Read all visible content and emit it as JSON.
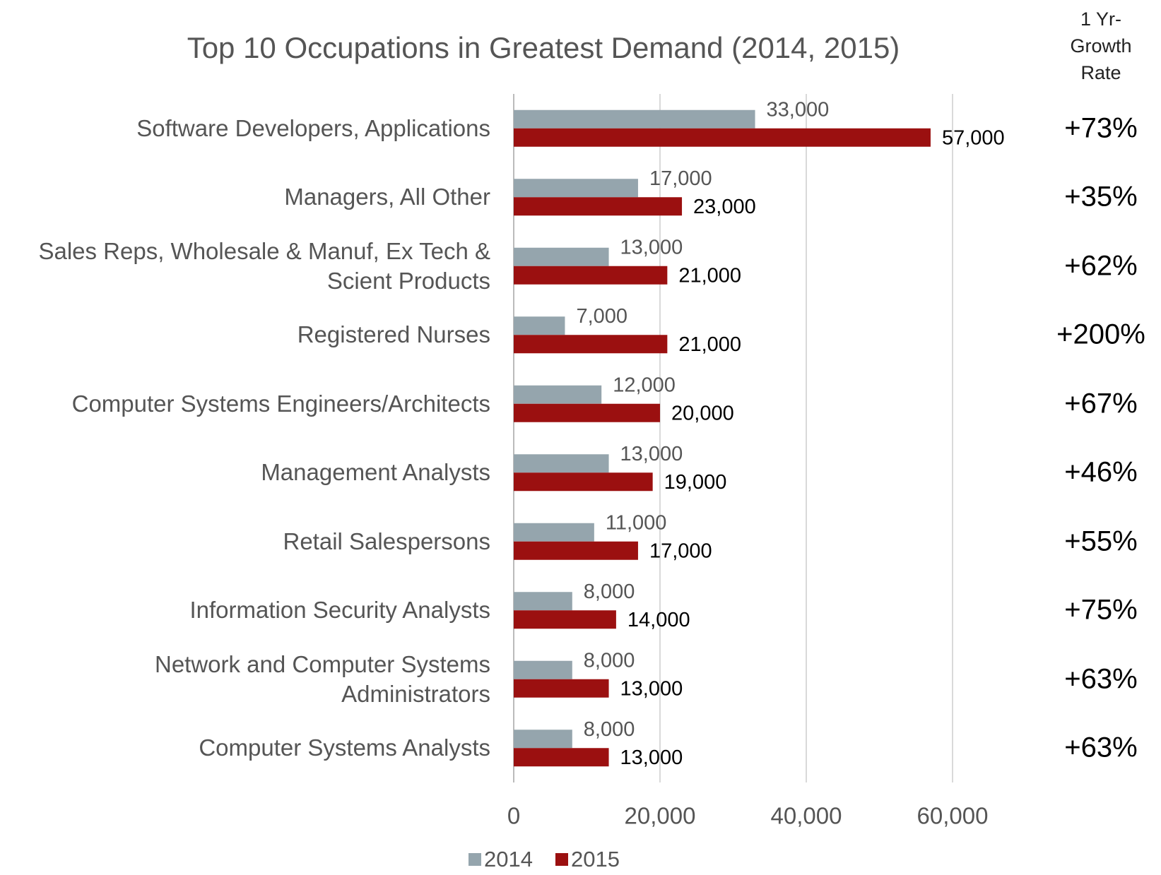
{
  "chart_data": {
    "type": "hbar",
    "title": "Top 10 Occupations in Greatest Demand (2014, 2015)",
    "categories": [
      "Software Developers, Applications",
      "Managers, All Other",
      "Sales Reps, Wholesale & Manuf, Ex Tech & Scient Products",
      "Registered Nurses",
      "Computer Systems Engineers/Architects",
      "Management Analysts",
      "Retail Salespersons",
      "Information Security Analysts",
      "Network and Computer Systems Administrators",
      "Computer Systems Analysts"
    ],
    "series": [
      {
        "name": "2014",
        "color": "#95a5ad",
        "values": [
          33000,
          17000,
          13000,
          7000,
          12000,
          13000,
          11000,
          8000,
          8000,
          8000
        ],
        "value_labels": [
          "33,000",
          "17,000",
          "13,000",
          "7,000",
          "12,000",
          "13,000",
          "11,000",
          "8,000",
          "8,000",
          "8,000"
        ]
      },
      {
        "name": "2015",
        "color": "#9b1010",
        "values": [
          57000,
          23000,
          21000,
          21000,
          20000,
          19000,
          17000,
          14000,
          13000,
          13000
        ],
        "value_labels": [
          "57,000",
          "23,000",
          "21,000",
          "21,000",
          "20,000",
          "19,000",
          "17,000",
          "14,000",
          "13,000",
          "13,000"
        ]
      }
    ],
    "xlim": [
      0,
      65000
    ],
    "xticks": [
      0,
      {
        "value": 20000,
        "label": "20,000"
      },
      {
        "value": 40000,
        "label": "40,000"
      },
      {
        "value": 60000,
        "label": "60,000"
      }
    ],
    "grid": true,
    "legend": "bottom",
    "growth_rate_header": "1 Yr-Growth Rate",
    "growth_rates": [
      "+73%",
      "+35%",
      "+62%",
      "+200%",
      "+67%",
      "+46%",
      "+55%",
      "+75%",
      "+63%",
      "+63%"
    ]
  }
}
